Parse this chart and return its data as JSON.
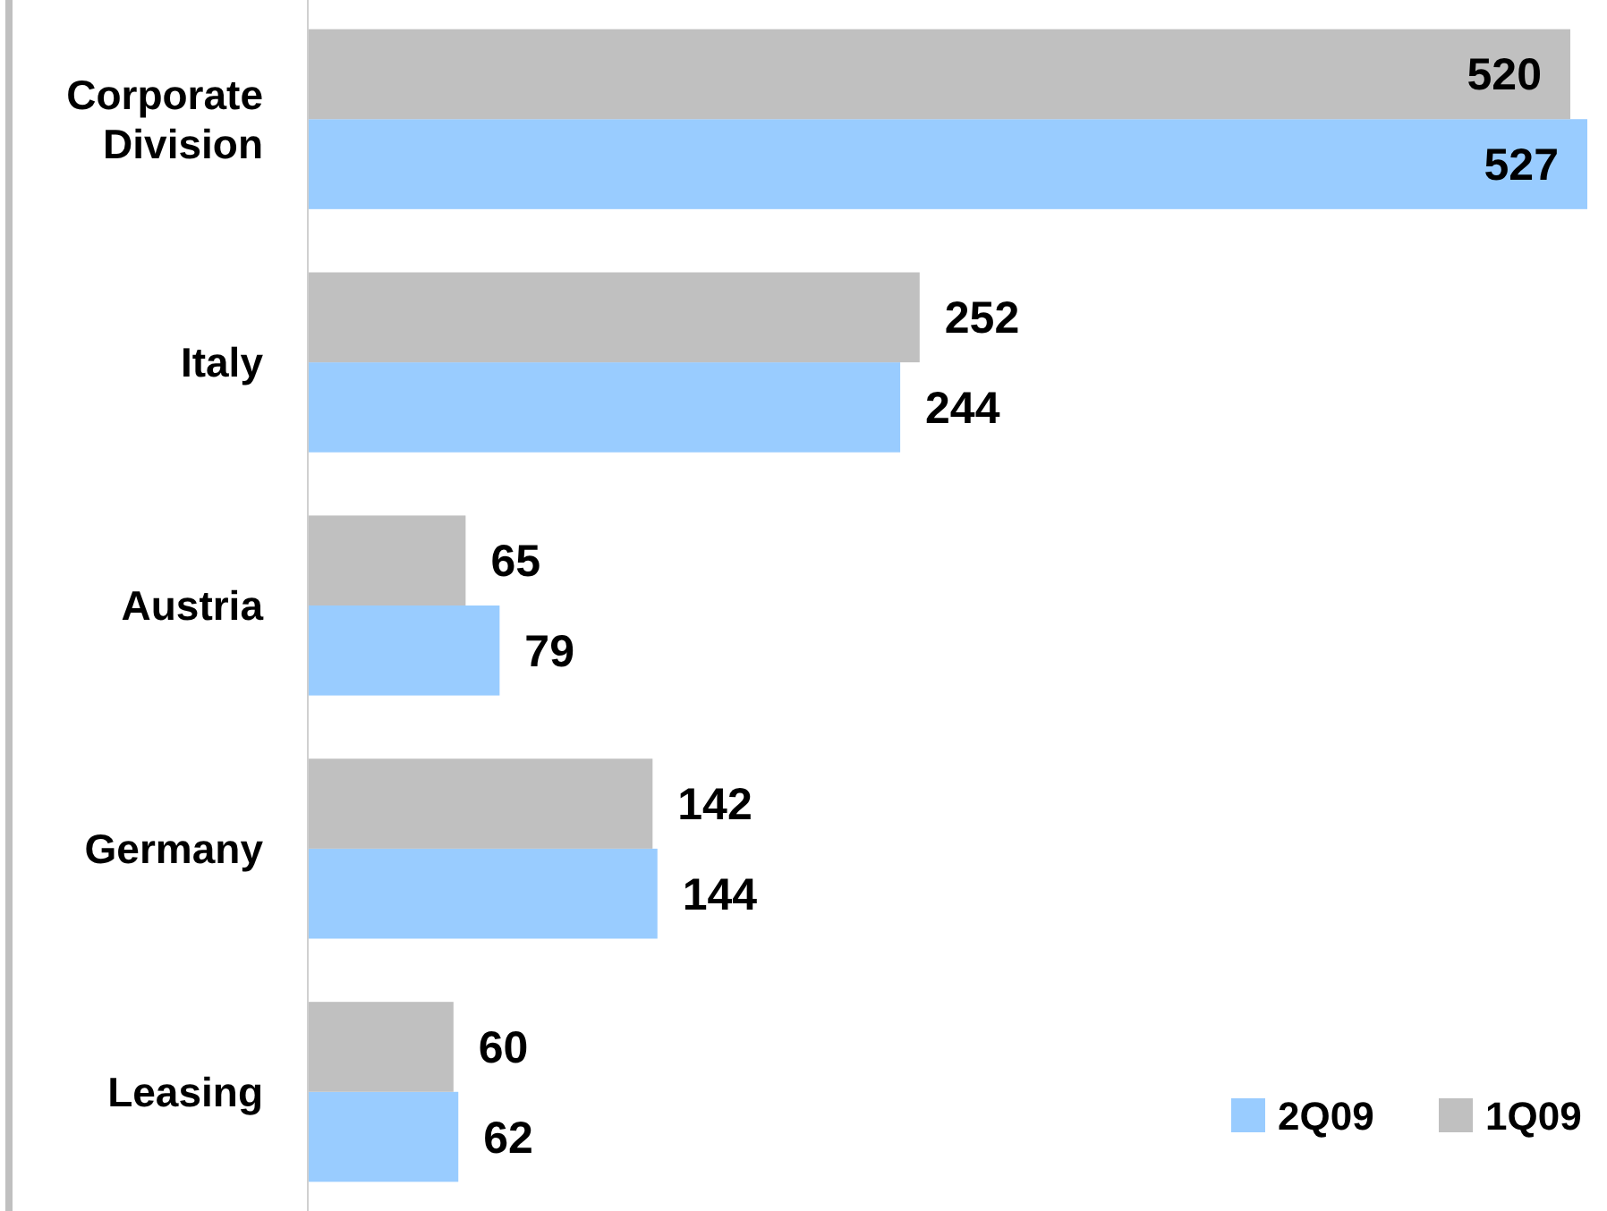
{
  "chart_data": {
    "type": "bar",
    "orientation": "horizontal",
    "categories": [
      "Corporate Division",
      "Italy",
      "Austria",
      "Germany",
      "Leasing"
    ],
    "series": [
      {
        "name": "2Q09",
        "color": "#99ccff",
        "values": [
          527,
          244,
          79,
          144,
          62
        ]
      },
      {
        "name": "1Q09",
        "color": "#c0c0c0",
        "values": [
          520,
          252,
          65,
          142,
          60
        ]
      }
    ],
    "data_labels": true,
    "legend": "bottom right"
  }
}
